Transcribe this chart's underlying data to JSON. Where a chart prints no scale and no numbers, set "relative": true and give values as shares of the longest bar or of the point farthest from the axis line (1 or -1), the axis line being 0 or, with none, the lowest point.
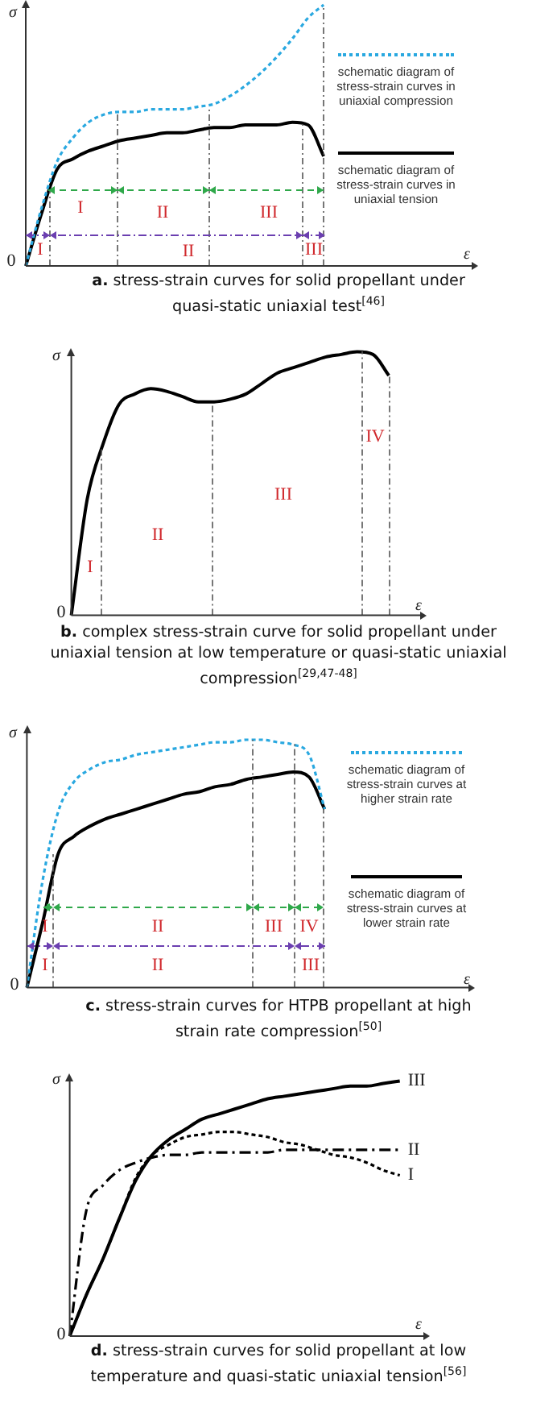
{
  "chart_data": [
    {
      "type": "line",
      "title": "a. stress-strain curves for solid propellant under quasi-static uniaxial test$^{[46]}$",
      "xlabel": "ε",
      "ylabel": "σ",
      "relative": true,
      "legend": "right",
      "annotations": [
        "0",
        "I",
        "II",
        "III",
        "I",
        "II",
        "III"
      ],
      "categories": [
        null,
        null,
        null,
        null,
        null,
        null,
        null,
        null,
        null,
        null,
        null,
        null,
        null,
        null,
        null,
        null,
        null,
        null,
        null,
        null,
        null,
        null,
        null,
        null,
        null,
        null,
        null,
        null
      ],
      "series": [
        {
          "name": "schematic diagram of stress-strain curves in uniaxial compression",
          "color": "#29a8e0",
          "line_style": "dotted",
          "values": [
            0,
            0.22,
            0.4,
            0.49,
            0.55,
            0.58,
            0.59,
            0.59,
            0.6,
            0.6,
            0.6,
            0.61,
            0.62,
            0.65,
            0.69,
            0.74,
            0.8,
            0.87,
            0.95,
            1,
            null,
            null,
            null,
            null,
            null,
            null,
            null,
            null
          ]
        },
        {
          "name": "schematic diagram of stress-strain curves in uniaxial tension",
          "color": "#000000",
          "line_style": "solid",
          "values": [
            0,
            0.2,
            0.37,
            0.41,
            0.44,
            0.46,
            0.48,
            0.49,
            0.5,
            0.51,
            0.51,
            0.52,
            0.53,
            0.53,
            0.54,
            0.54,
            0.54,
            0.55,
            0.54,
            0.42,
            null,
            null,
            null,
            null,
            null,
            null,
            null,
            null
          ]
        }
      ]
    },
    {
      "type": "line",
      "title": "b. complex stress-strain curve for solid propellant under uniaxial tension at low temperature or quasi-static uniaxial compression$^{[29,47-48]}$",
      "xlabel": "ε",
      "ylabel": "σ",
      "relative": true,
      "annotations": [
        "0",
        "I",
        "II",
        "III",
        "IV"
      ],
      "categories": [
        null,
        null,
        null,
        null,
        null,
        null,
        null,
        null,
        null,
        null,
        null,
        null,
        null,
        null,
        null,
        null,
        null,
        null,
        null,
        null,
        null,
        null,
        null
      ],
      "series": [
        {
          "color": "#000000",
          "line_style": "solid",
          "values": [
            0,
            0.44,
            0.65,
            0.8,
            0.84,
            0.86,
            0.85,
            0.83,
            0.81,
            0.81,
            0.82,
            0.84,
            0.88,
            0.92,
            0.94,
            0.96,
            0.98,
            0.99,
            1,
            0.99,
            0.91,
            null,
            null
          ]
        }
      ]
    },
    {
      "type": "line",
      "title": "c. stress-strain curves for HTPB propellant at high strain rate compression$^{[50]}$",
      "xlabel": "ε",
      "ylabel": "σ",
      "relative": true,
      "legend": "right",
      "annotations": [
        "0",
        "I",
        "II",
        "III",
        "IV",
        "I",
        "II",
        "III"
      ],
      "categories": [
        null,
        null,
        null,
        null,
        null,
        null,
        null,
        null,
        null,
        null,
        null,
        null,
        null,
        null,
        null,
        null,
        null,
        null,
        null,
        null,
        null,
        null,
        null,
        null,
        null,
        null,
        null,
        null,
        null
      ],
      "series": [
        {
          "name": "schematic diagram of stress-strain curves at higher strain rate",
          "color": "#29a8e0",
          "line_style": "dotted",
          "values": [
            0,
            0.43,
            0.71,
            0.83,
            0.88,
            0.91,
            0.92,
            0.94,
            0.95,
            0.96,
            0.97,
            0.98,
            0.99,
            0.99,
            1,
            1,
            0.99,
            0.98,
            0.94,
            0.72,
            null,
            null,
            null,
            null,
            null,
            null,
            null,
            null,
            null
          ]
        },
        {
          "name": "schematic diagram of stress-strain curves at lower strain rate",
          "color": "#000000",
          "line_style": "solid",
          "values": [
            0,
            0.26,
            0.54,
            0.61,
            0.65,
            0.68,
            0.7,
            0.72,
            0.74,
            0.76,
            0.78,
            0.79,
            0.81,
            0.82,
            0.84,
            0.85,
            0.86,
            0.87,
            0.85,
            0.72,
            null,
            null,
            null,
            null,
            null,
            null,
            null,
            null,
            null
          ]
        }
      ]
    },
    {
      "type": "line",
      "title": "d. stress-strain curves for solid propellant at low temperature and quasi-static uniaxial tension$^{[56]}$",
      "xlabel": "ε",
      "ylabel": "σ",
      "relative": true,
      "annotations": [
        "0"
      ],
      "categories": [
        null,
        null,
        null,
        null,
        null,
        null,
        null,
        null,
        null,
        null,
        null,
        null,
        null,
        null,
        null,
        null,
        null,
        null,
        null,
        null,
        null,
        null
      ],
      "series": [
        {
          "name": "III",
          "color": "#000000",
          "line_style": "solid",
          "values": [
            0,
            0.16,
            0.3,
            0.46,
            0.61,
            0.71,
            0.77,
            0.81,
            0.85,
            0.87,
            0.89,
            0.91,
            0.93,
            0.94,
            0.95,
            0.96,
            0.97,
            0.98,
            0.98,
            0.99,
            1,
            null
          ]
        },
        {
          "name": "II",
          "color": "#000000",
          "line_style": "dashed",
          "values": [
            0,
            0.49,
            0.59,
            0.65,
            0.68,
            0.7,
            0.71,
            0.71,
            0.72,
            0.72,
            0.72,
            0.72,
            0.72,
            0.73,
            0.73,
            0.73,
            0.73,
            0.73,
            0.73,
            0.73,
            0.73,
            null
          ]
        },
        {
          "name": "I",
          "color": "#000000",
          "line_style": "dotted",
          "values": [
            0,
            0.16,
            0.3,
            0.46,
            0.62,
            0.71,
            0.75,
            0.78,
            0.79,
            0.8,
            0.8,
            0.79,
            0.78,
            0.76,
            0.75,
            0.73,
            0.71,
            0.7,
            0.68,
            0.65,
            0.63,
            null
          ]
        }
      ]
    }
  ]
}
